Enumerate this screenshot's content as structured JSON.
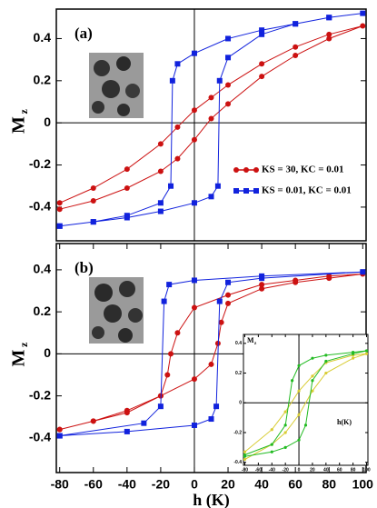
{
  "chart_data": [
    {
      "type": "line",
      "label": "(a)",
      "y_label": "M",
      "y_label_sub": "z",
      "xlim": [
        -82,
        102
      ],
      "ylim": [
        -0.56,
        0.54
      ],
      "yticks": [
        -0.4,
        -0.2,
        0,
        0.2,
        0.4
      ],
      "series": [
        {
          "name": "KS = 30,   KC = 0.01",
          "color": "#cc1111",
          "marker": "circle",
          "x": [
            -80,
            -60,
            -40,
            -20,
            -10,
            0,
            10,
            20,
            40,
            60,
            80,
            100,
            80,
            60,
            40,
            20,
            10,
            0,
            -10,
            -20,
            -40,
            -60,
            -80
          ],
          "values": [
            -0.41,
            -0.37,
            -0.31,
            -0.23,
            -0.17,
            -0.08,
            0.02,
            0.09,
            0.22,
            0.32,
            0.4,
            0.46,
            0.42,
            0.36,
            0.28,
            0.18,
            0.12,
            0.06,
            -0.02,
            -0.1,
            -0.22,
            -0.31,
            -0.38
          ]
        },
        {
          "name": "KS = 0.01, KC = 0.01",
          "color": "#1122dd",
          "marker": "square",
          "x": [
            -80,
            -60,
            -40,
            -20,
            0,
            10,
            14,
            15,
            20,
            40,
            60,
            80,
            100,
            80,
            60,
            40,
            20,
            0,
            -10,
            -13,
            -14,
            -20,
            -40,
            -60,
            -80
          ],
          "values": [
            -0.49,
            -0.47,
            -0.45,
            -0.42,
            -0.38,
            -0.35,
            -0.3,
            0.2,
            0.31,
            0.42,
            0.47,
            0.5,
            0.52,
            0.5,
            0.47,
            0.44,
            0.4,
            0.33,
            0.28,
            0.2,
            -0.3,
            -0.38,
            -0.44,
            -0.47,
            -0.49
          ]
        }
      ]
    },
    {
      "type": "line",
      "label": "(b)",
      "y_label": "M",
      "y_label_sub": "z",
      "x_label": "h (K)",
      "xlim": [
        -82,
        102
      ],
      "ylim": [
        -0.565,
        0.525
      ],
      "yticks": [
        -0.4,
        -0.2,
        0,
        0.2,
        0.4
      ],
      "xticks": [
        -80,
        -60,
        -40,
        -20,
        0,
        20,
        40,
        60,
        80,
        100
      ],
      "series": [
        {
          "color": "#cc1111",
          "marker": "circle",
          "x": [
            -80,
            -60,
            -40,
            -20,
            0,
            10,
            14,
            16,
            20,
            40,
            60,
            80,
            100,
            80,
            60,
            40,
            20,
            0,
            -10,
            -14,
            -16,
            -20,
            -40,
            -60,
            -80
          ],
          "values": [
            -0.36,
            -0.32,
            -0.27,
            -0.2,
            -0.12,
            -0.05,
            0.05,
            0.15,
            0.24,
            0.31,
            0.34,
            0.36,
            0.38,
            0.37,
            0.35,
            0.33,
            0.28,
            0.22,
            0.1,
            0,
            -0.1,
            -0.2,
            -0.28,
            -0.32,
            -0.36
          ]
        },
        {
          "color": "#1122dd",
          "marker": "square",
          "x": [
            -80,
            -40,
            0,
            10,
            13,
            15,
            20,
            40,
            100,
            40,
            0,
            -15,
            -18,
            -20,
            -30,
            -80
          ],
          "values": [
            -0.39,
            -0.37,
            -0.34,
            -0.31,
            -0.25,
            0.25,
            0.34,
            0.36,
            0.39,
            0.37,
            0.35,
            0.33,
            0.25,
            -0.25,
            -0.33,
            -0.39
          ]
        }
      ]
    },
    {
      "type": "line",
      "inset": true,
      "y_label": "M",
      "y_label_sub": "z",
      "x_label": "h(K)",
      "xlim": [
        -82,
        102
      ],
      "ylim": [
        -0.42,
        0.46
      ],
      "yticks": [
        -0.4,
        -0.2,
        0,
        0.2,
        0.4
      ],
      "xticks": [
        -80,
        -60,
        -40,
        -20,
        0,
        20,
        40,
        60,
        80,
        100
      ],
      "series": [
        {
          "color": "#d8cc33",
          "marker": "circle",
          "x": [
            -80,
            -40,
            -20,
            0,
            20,
            40,
            80,
            100,
            80,
            40,
            20,
            0,
            -20,
            -40,
            -80
          ],
          "values": [
            -0.38,
            -0.28,
            -0.2,
            -0.08,
            0.08,
            0.2,
            0.3,
            0.33,
            0.32,
            0.27,
            0.18,
            0.08,
            -0.06,
            -0.18,
            -0.33
          ]
        },
        {
          "color": "#22bb22",
          "marker": "circle",
          "x": [
            -80,
            -40,
            -20,
            0,
            10,
            20,
            40,
            80,
            100,
            80,
            40,
            20,
            0,
            -10,
            -20,
            -40,
            -80
          ],
          "values": [
            -0.36,
            -0.33,
            -0.3,
            -0.25,
            -0.15,
            0.15,
            0.28,
            0.33,
            0.35,
            0.34,
            0.32,
            0.3,
            0.25,
            0.15,
            -0.15,
            -0.28,
            -0.35
          ]
        }
      ]
    }
  ]
}
